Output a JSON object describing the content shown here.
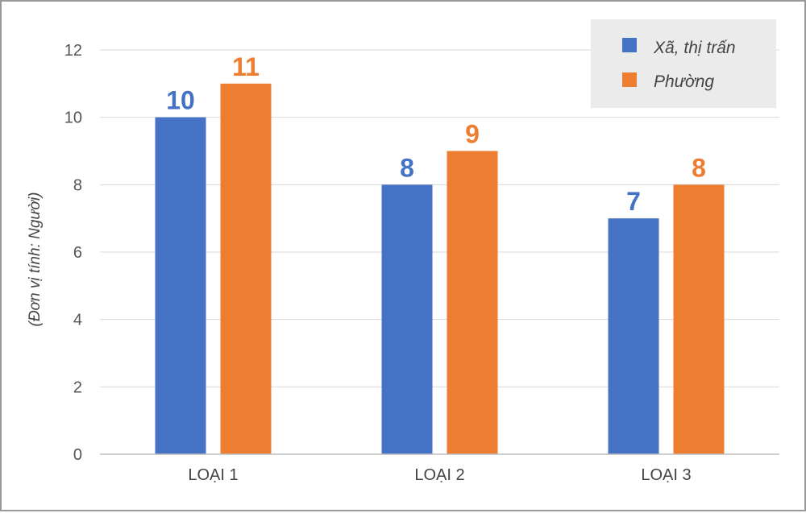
{
  "chart_data": {
    "type": "bar",
    "title": "",
    "xlabel": "",
    "ylabel": "(Đơn vị tính: Người)",
    "categories": [
      "LOẠI 1",
      "LOẠI 2",
      "LOẠI 3"
    ],
    "series": [
      {
        "name": "Xã, thị trấn",
        "values": [
          10,
          8,
          7
        ],
        "color": "#4472c4"
      },
      {
        "name": "Phường",
        "values": [
          11,
          9,
          8
        ],
        "color": "#ed7d31"
      }
    ],
    "ylim": [
      0,
      12
    ],
    "yticks": [
      0,
      2,
      4,
      6,
      8,
      10,
      12
    ],
    "grid": true,
    "legend_position": "top-right",
    "data_labels": true
  }
}
